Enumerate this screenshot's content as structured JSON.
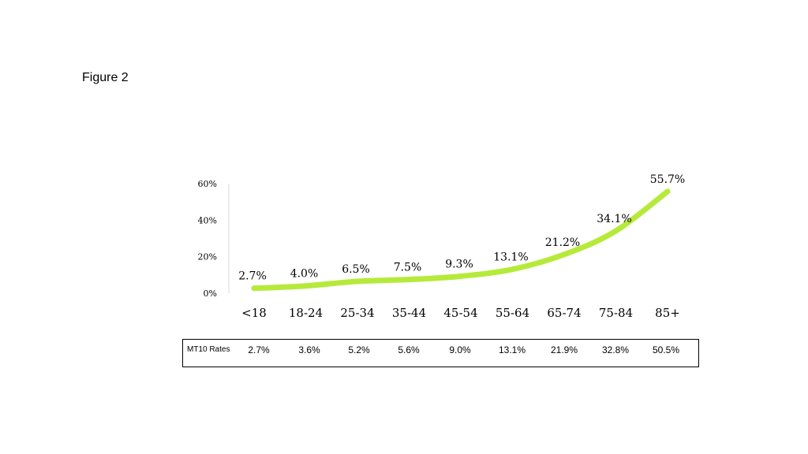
{
  "figure_label": "Figure 2",
  "chart_data": {
    "type": "line",
    "categories": [
      "<18",
      "18-24",
      "25-34",
      "35-44",
      "45-54",
      "55-64",
      "65-74",
      "75-84",
      "85+"
    ],
    "values": [
      2.7,
      4.0,
      6.5,
      7.5,
      9.3,
      13.1,
      21.2,
      34.1,
      55.7
    ],
    "data_labels": [
      "2.7%",
      "4.0%",
      "6.5%",
      "7.5%",
      "9.3%",
      "13.1%",
      "21.2%",
      "34.1%",
      "55.7%"
    ],
    "y_ticks": [
      "0%",
      "20%",
      "40%",
      "60%"
    ],
    "y_tick_values": [
      0,
      20,
      40,
      60
    ],
    "ylim": [
      0,
      60
    ],
    "title": "",
    "xlabel": "",
    "ylabel": "",
    "grid": false,
    "line_color": "#b6ea3a"
  },
  "table": {
    "title": "MT10 Rates",
    "values": [
      "2.7%",
      "3.6%",
      "5.2%",
      "5.6%",
      "9.0%",
      "13.1%",
      "21.9%",
      "32.8%",
      "50.5%"
    ]
  }
}
